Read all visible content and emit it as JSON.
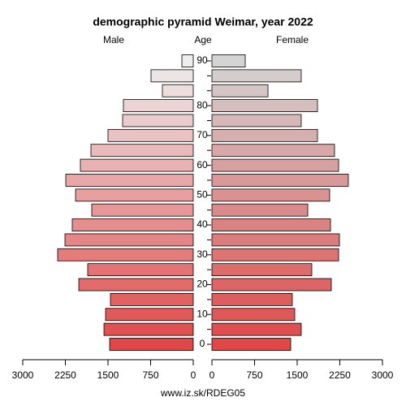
{
  "chart_data": {
    "type": "pyramid",
    "title": "demographic pyramid Weimar, year 2022",
    "y_axis_label": "Age",
    "footer": "www.iz.sk/RDEG05",
    "categories": [
      "0",
      null,
      "10",
      null,
      "20",
      null,
      "30",
      null,
      "40",
      null,
      "50",
      null,
      "60",
      null,
      "70",
      null,
      "80",
      null,
      null,
      "90"
    ],
    "series": [
      {
        "name": "Male",
        "side": "left",
        "color_bottom": "#e04848",
        "color_top": "#eeeeee",
        "values": [
          1471,
          1571,
          1543,
          1457,
          2014,
          1857,
          2386,
          2257,
          2129,
          1786,
          2071,
          2243,
          1986,
          1800,
          1500,
          1243,
          1229,
          543,
          743,
          200
        ]
      },
      {
        "name": "Female",
        "side": "right",
        "color_bottom": "#e04848",
        "color_top": "#d4d4d4",
        "values": [
          1386,
          1571,
          1457,
          1414,
          2100,
          1757,
          2229,
          2243,
          2086,
          1686,
          2071,
          2400,
          2229,
          2157,
          1857,
          1571,
          1857,
          986,
          1571,
          586
        ]
      }
    ],
    "xlim": [
      0,
      3000
    ],
    "xticks": [
      0,
      750,
      1500,
      2250,
      3000
    ]
  }
}
